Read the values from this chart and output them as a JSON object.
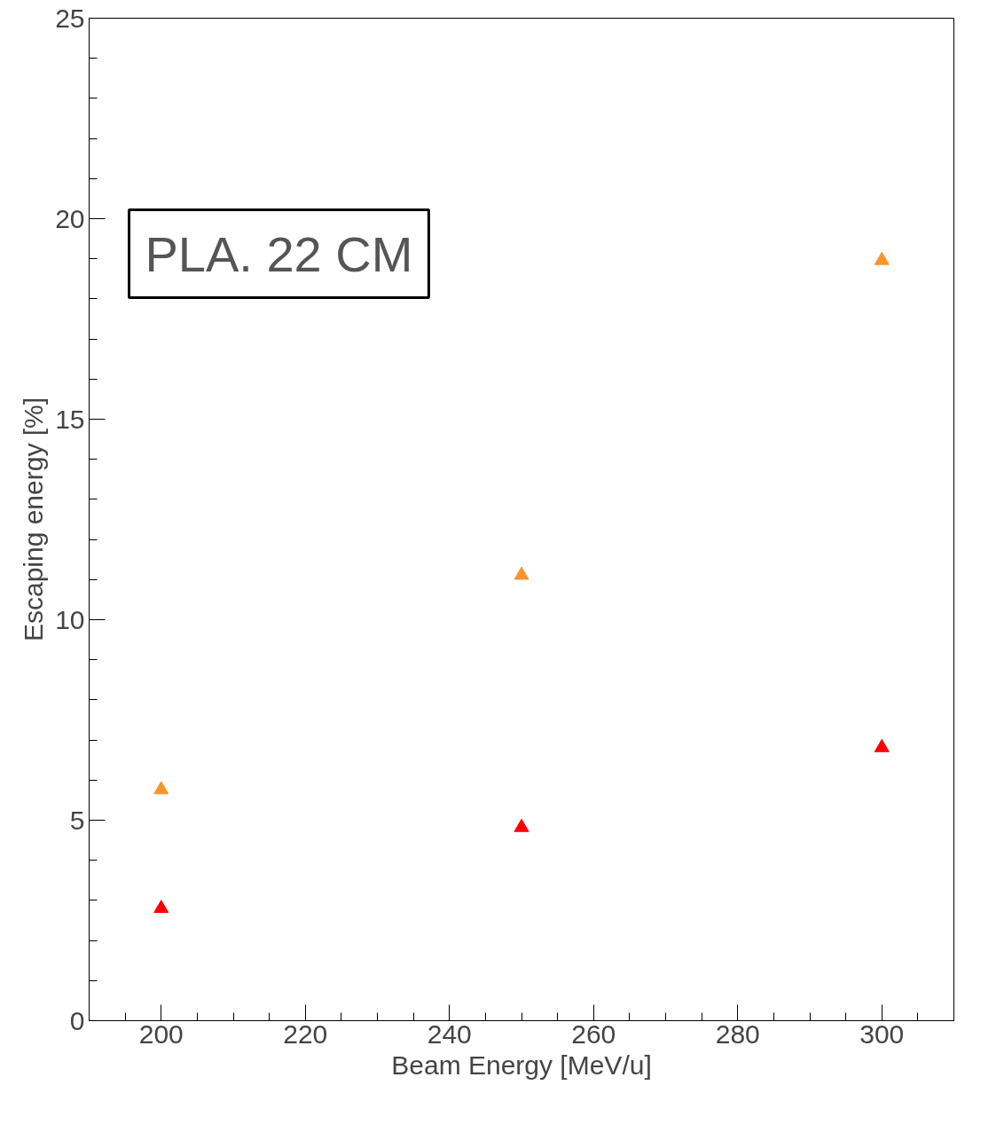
{
  "chart_data": {
    "type": "scatter",
    "xlabel": "Beam Energy [MeV/u]",
    "ylabel": "Escaping energy [%]",
    "x": [
      200,
      250,
      300
    ],
    "series": [
      {
        "color": "#f7952d",
        "values": [
          5.76,
          11.11,
          18.96
        ]
      },
      {
        "color": "#ff0000",
        "values": [
          2.8,
          4.82,
          6.81
        ]
      }
    ],
    "xlim": [
      190,
      310
    ],
    "ylim": [
      0,
      25
    ],
    "xticks": [
      200,
      220,
      240,
      260,
      280,
      300
    ],
    "yticks": [
      0,
      5,
      10,
      15,
      20,
      25
    ],
    "grid": false,
    "marker": "triangle",
    "annotations": [
      "PLA. 22 CM"
    ]
  }
}
